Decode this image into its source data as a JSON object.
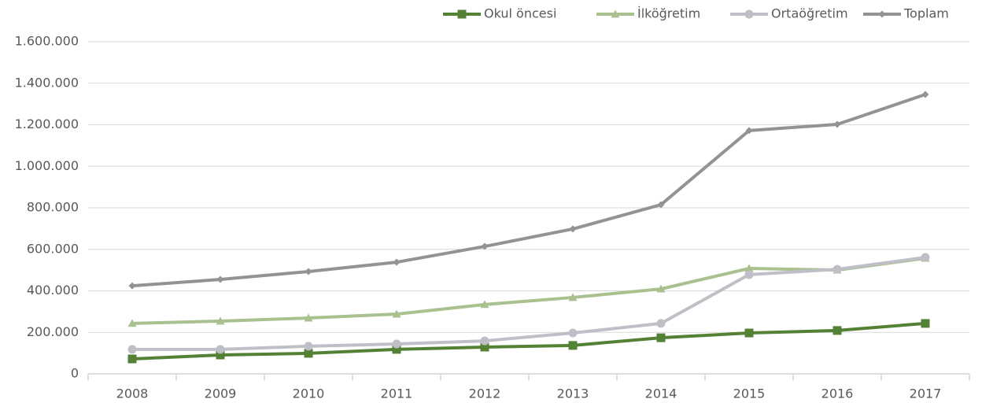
{
  "chart_data": {
    "type": "line",
    "categories": [
      "2008",
      "2009",
      "2010",
      "2011",
      "2012",
      "2013",
      "2014",
      "2015",
      "2016",
      "2017"
    ],
    "series": [
      {
        "name": "Okul öncesi",
        "color": "#548235",
        "marker": "square",
        "values": [
          72000,
          91000,
          99000,
          118000,
          129000,
          137000,
          174000,
          197000,
          209000,
          243000
        ]
      },
      {
        "name": "İlköğretim",
        "color": "#a9c08f",
        "marker": "triangle",
        "values": [
          243000,
          254000,
          269000,
          288000,
          334000,
          368000,
          409000,
          508000,
          500000,
          557000
        ]
      },
      {
        "name": "Ortaöğretim",
        "color": "#bfbfc7",
        "marker": "circle",
        "values": [
          118000,
          118000,
          133000,
          144000,
          159000,
          197000,
          243000,
          478000,
          504000,
          561000
        ]
      },
      {
        "name": "Toplam",
        "color": "#939393",
        "marker": "diamond",
        "values": [
          424000,
          455000,
          493000,
          538000,
          614000,
          698000,
          815000,
          1172000,
          1202000,
          1346000
        ]
      }
    ],
    "ylim": [
      0,
      1600000
    ],
    "yticks": [
      0,
      {
        "value": 200000,
        "label": "200.000"
      },
      {
        "value": 400000,
        "label": "400.000"
      },
      {
        "value": 600000,
        "label": "600.000"
      },
      {
        "value": 800000,
        "label": "800.000"
      },
      {
        "value": 1000000,
        "label": "1.000.000"
      },
      {
        "value": 1200000,
        "label": "1.200.000"
      },
      {
        "value": 1400000,
        "label": "1.400.000"
      },
      {
        "value": 1600000,
        "label": "1.600.000"
      }
    ],
    "grid": true,
    "legend": "top-right"
  }
}
